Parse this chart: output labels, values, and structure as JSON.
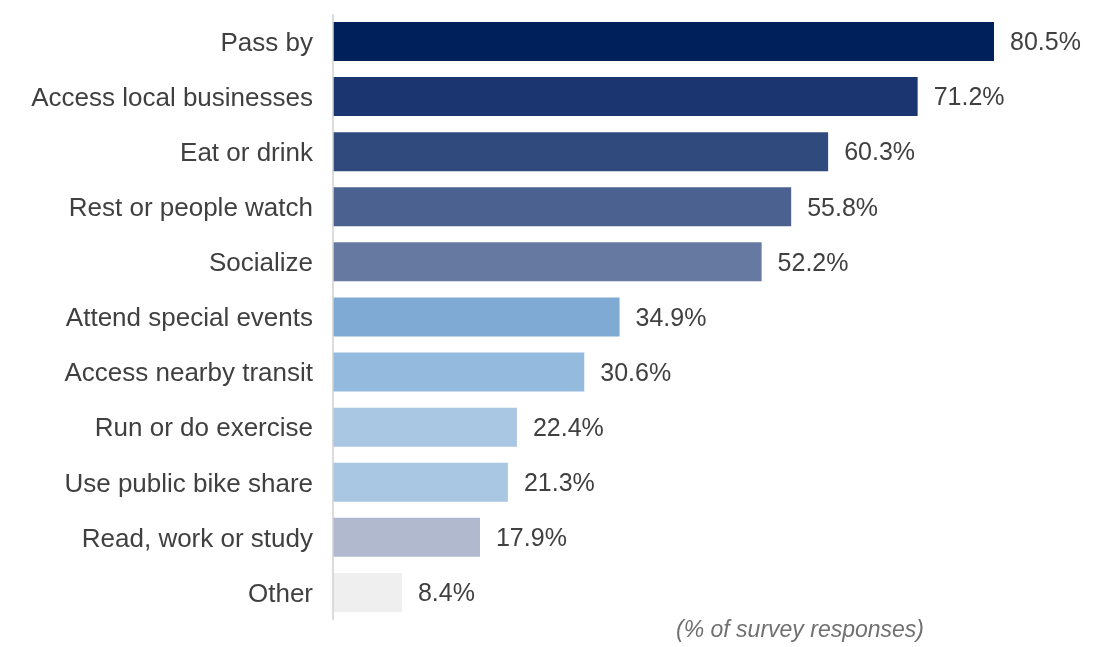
{
  "chart_data": {
    "type": "bar",
    "orientation": "horizontal",
    "categories": [
      "Pass by",
      "Access local businesses",
      "Eat or drink",
      "Rest or people watch",
      "Socialize",
      "Attend special events",
      "Access nearby transit",
      "Run or do exercise",
      "Use public bike share",
      "Read, work or study",
      "Other"
    ],
    "values": [
      80.5,
      71.2,
      60.3,
      55.8,
      52.2,
      34.9,
      30.6,
      22.4,
      21.3,
      17.9,
      8.4
    ],
    "value_labels": [
      "80.5%",
      "71.2%",
      "60.3%",
      "55.8%",
      "52.2%",
      "34.9%",
      "30.6%",
      "22.4%",
      "21.3%",
      "17.9%",
      "8.4%"
    ],
    "colors": [
      "#00205b",
      "#1a3570",
      "#314a7e",
      "#4b6290",
      "#6679a1",
      "#7eaad4",
      "#94bade",
      "#a9c6e3",
      "#a9c6e3",
      "#b1b9ce",
      "#efefef"
    ],
    "annotations": [
      "(% of survey responses)"
    ],
    "grid": false
  }
}
